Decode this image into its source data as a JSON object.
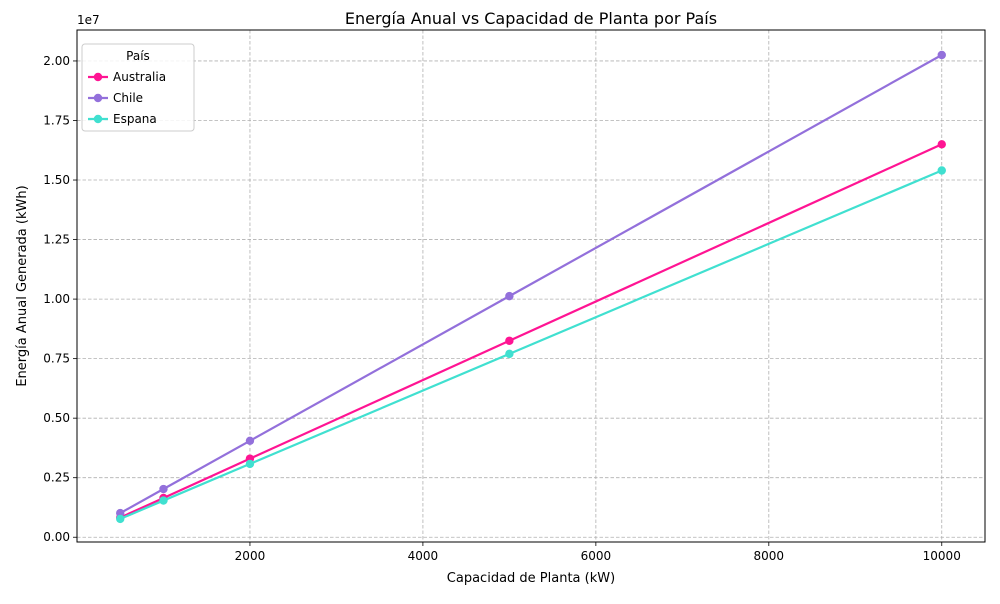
{
  "chart_data": {
    "type": "line",
    "title": "Energía Anual vs Capacidad de Planta por País",
    "xlabel": "Capacidad de Planta (kW)",
    "ylabel": "Energía Anual Generada (kWh)",
    "y_offset_label": "1e7",
    "xlim": [
      0,
      10500
    ],
    "ylim": [
      -200000,
      21300000
    ],
    "x_ticks": [
      2000,
      4000,
      6000,
      8000,
      10000
    ],
    "y_ticks": [
      0,
      2500000,
      5000000,
      7500000,
      10000000,
      12500000,
      15000000,
      17500000,
      20000000
    ],
    "y_tick_labels": [
      "0.00",
      "0.25",
      "0.50",
      "0.75",
      "1.00",
      "1.25",
      "1.50",
      "1.75",
      "2.00"
    ],
    "grid": true,
    "legend_title": "País",
    "legend_position": "top-left",
    "x": [
      500,
      1000,
      2000,
      5000,
      10000
    ],
    "series": [
      {
        "name": "Australia",
        "color": "#FF1493",
        "values": [
          825000,
          1650000,
          3300000,
          8250000,
          16500000
        ]
      },
      {
        "name": "Chile",
        "color": "#9370DB",
        "values": [
          1012500,
          2025000,
          4050000,
          10125000,
          20250000
        ]
      },
      {
        "name": "Espana",
        "color": "#40E0D0",
        "values": [
          770000,
          1540000,
          3080000,
          7700000,
          15400000
        ]
      }
    ]
  }
}
